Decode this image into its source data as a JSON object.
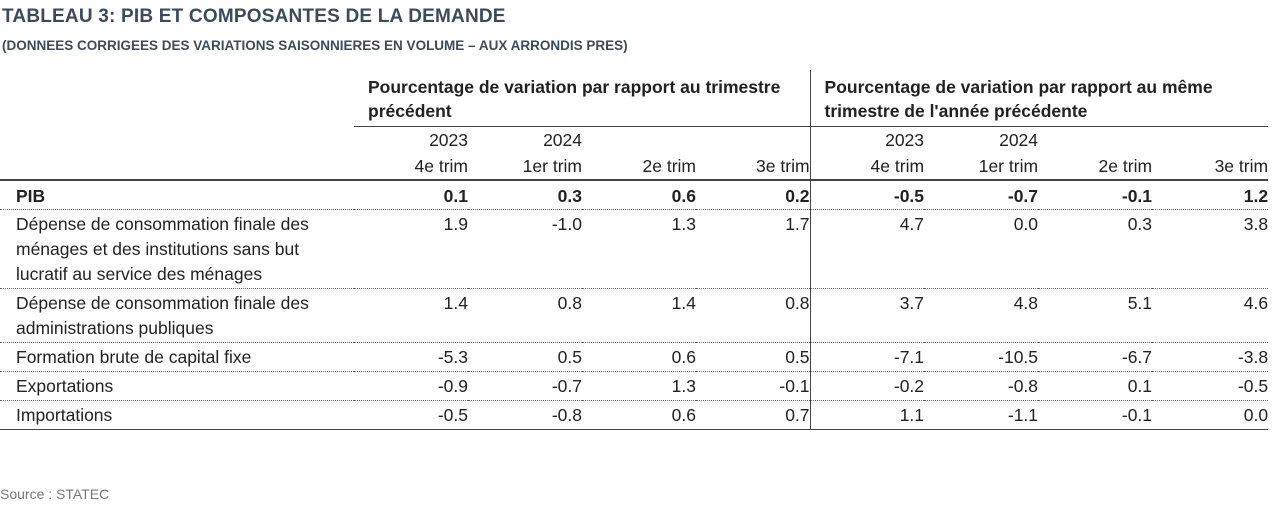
{
  "title": "TABLEAU 3: PIB ET COMPOSANTES DE LA DEMANDE",
  "subtitle": "(DONNEES CORRIGEES DES VARIATIONS SAISONNIERES EN VOLUME – AUX ARRONDIS PRES)",
  "groups": [
    "Pourcentage de variation par rapport au trimestre précédent",
    "Pourcentage de variation par rapport au même trimestre de l'année précédente"
  ],
  "years": [
    "2023",
    "2024",
    "",
    "",
    "2023",
    "2024",
    "",
    ""
  ],
  "quarters": [
    "4e trim",
    "1er trim",
    "2e trim",
    "3e trim",
    "4e trim",
    "1er trim",
    "2e trim",
    "3e trim"
  ],
  "rows": [
    {
      "label": "PIB",
      "values": [
        "0.1",
        "0.3",
        "0.6",
        "0.2",
        "-0.5",
        "-0.7",
        "-0.1",
        "1.2"
      ]
    },
    {
      "label": "Dépense de consommation finale des ménages et des institutions sans but lucratif au service des ménages",
      "values": [
        "1.9",
        "-1.0",
        "1.3",
        "1.7",
        "4.7",
        "0.0",
        "0.3",
        "3.8"
      ]
    },
    {
      "label": "Dépense de consommation finale des administrations publiques",
      "values": [
        "1.4",
        "0.8",
        "1.4",
        "0.8",
        "3.7",
        "4.8",
        "5.1",
        "4.6"
      ]
    },
    {
      "label": "Formation brute de capital fixe",
      "values": [
        "-5.3",
        "0.5",
        "0.6",
        "0.5",
        "-7.1",
        "-10.5",
        "-6.7",
        "-3.8"
      ]
    },
    {
      "label": "Exportations",
      "values": [
        "-0.9",
        "-0.7",
        "1.3",
        "-0.1",
        "-0.2",
        "-0.8",
        "0.1",
        "-0.5"
      ]
    },
    {
      "label": "Importations",
      "values": [
        "-0.5",
        "-0.8",
        "0.6",
        "0.7",
        "1.1",
        "-1.1",
        "-0.1",
        "0.0"
      ]
    }
  ],
  "source": "Source : STATEC"
}
